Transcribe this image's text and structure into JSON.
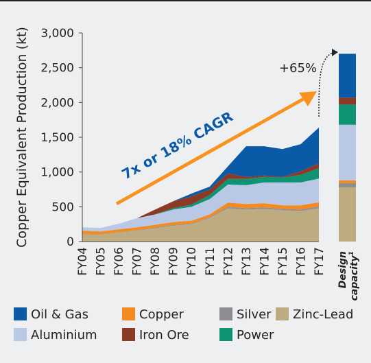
{
  "chart_data": {
    "type": "stacked_area",
    "y_axis_label": "Copper Equivalent Production (kt)",
    "categories": [
      "FY04",
      "FY05",
      "FY06",
      "FY07",
      "FY08",
      "FY09",
      "FY10",
      "FY11",
      "FY12",
      "FY13",
      "FY14",
      "FY15",
      "FY16",
      "FY17"
    ],
    "ylim": [
      0,
      3000
    ],
    "yticks": [
      0,
      500,
      {
        "value": 1000,
        "label": "1,000"
      },
      {
        "value": 1500,
        "label": "1,500"
      },
      {
        "value": 2000,
        "label": "2,000"
      },
      {
        "value": 2500,
        "label": "2,500"
      },
      {
        "value": 3000,
        "label": "3,000"
      }
    ],
    "series": [
      {
        "name": "Zinc-Lead",
        "color": "#bfab80",
        "values": [
          100,
          100,
          130,
          160,
          190,
          230,
          250,
          340,
          480,
          460,
          470,
          450,
          440,
          480
        ]
      },
      {
        "name": "Silver",
        "color": "#8c8e91",
        "values": [
          5,
          5,
          5,
          5,
          10,
          10,
          10,
          10,
          20,
          20,
          20,
          20,
          20,
          25
        ]
      },
      {
        "name": "Copper",
        "color": "#f58a20",
        "values": [
          50,
          40,
          40,
          40,
          40,
          40,
          40,
          40,
          60,
          60,
          60,
          50,
          60,
          60
        ]
      },
      {
        "name": "Aluminium",
        "color": "#b9c8e4",
        "values": [
          50,
          50,
          80,
          130,
          150,
          180,
          200,
          220,
          260,
          270,
          300,
          330,
          330,
          340
        ]
      },
      {
        "name": "Power",
        "color": "#0e9475",
        "values": [
          0,
          0,
          0,
          0,
          0,
          20,
          30,
          60,
          80,
          90,
          80,
          70,
          110,
          150
        ]
      },
      {
        "name": "Iron Ore",
        "color": "#8b3a25",
        "values": [
          0,
          0,
          0,
          0,
          70,
          100,
          120,
          80,
          80,
          30,
          20,
          10,
          50,
          70
        ]
      },
      {
        "name": "Oil & Gas",
        "color": "#0b5aa8",
        "values": [
          0,
          0,
          0,
          0,
          0,
          0,
          40,
          40,
          100,
          440,
          420,
          400,
          390,
          515
        ]
      }
    ],
    "capacity": {
      "label": [
        "Design",
        "capacity"
      ],
      "footnote": "1",
      "values": [
        780,
        60,
        40,
        800,
        290,
        100,
        630
      ]
    },
    "annotations": {
      "growth": "+65%",
      "cagr": "7x or 18% CAGR"
    }
  }
}
